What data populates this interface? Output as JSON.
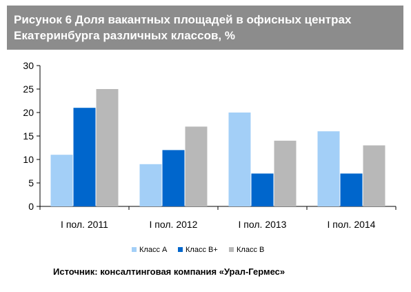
{
  "header": {
    "title": "Рисунок 6 Доля вакантных площадей в офисных центрах Екатеринбурга различных классов, %"
  },
  "source": "Источник: консалтинговая компания «Урал-Гермес»",
  "colors": {
    "banner": "#8c8c8c",
    "series": [
      "#a3cff7",
      "#0066cc",
      "#b8b8b8"
    ]
  },
  "chart_data": {
    "type": "bar",
    "title": "Рисунок 6 Доля вакантных площадей в офисных центрах Екатеринбурга различных классов, %",
    "xlabel": "",
    "ylabel": "",
    "ylim": [
      0,
      30
    ],
    "yticks": [
      0,
      5,
      10,
      15,
      20,
      25,
      30
    ],
    "grid": false,
    "legend_position": "bottom",
    "categories": [
      "I пол. 2011",
      "I пол. 2012",
      "I пол. 2013",
      "I пол. 2014"
    ],
    "series": [
      {
        "name": "Класс А",
        "values": [
          11,
          9,
          20,
          16
        ]
      },
      {
        "name": "Класс В+",
        "values": [
          21,
          12,
          7,
          7
        ]
      },
      {
        "name": "Класс В",
        "values": [
          25,
          17,
          14,
          13
        ]
      }
    ]
  }
}
